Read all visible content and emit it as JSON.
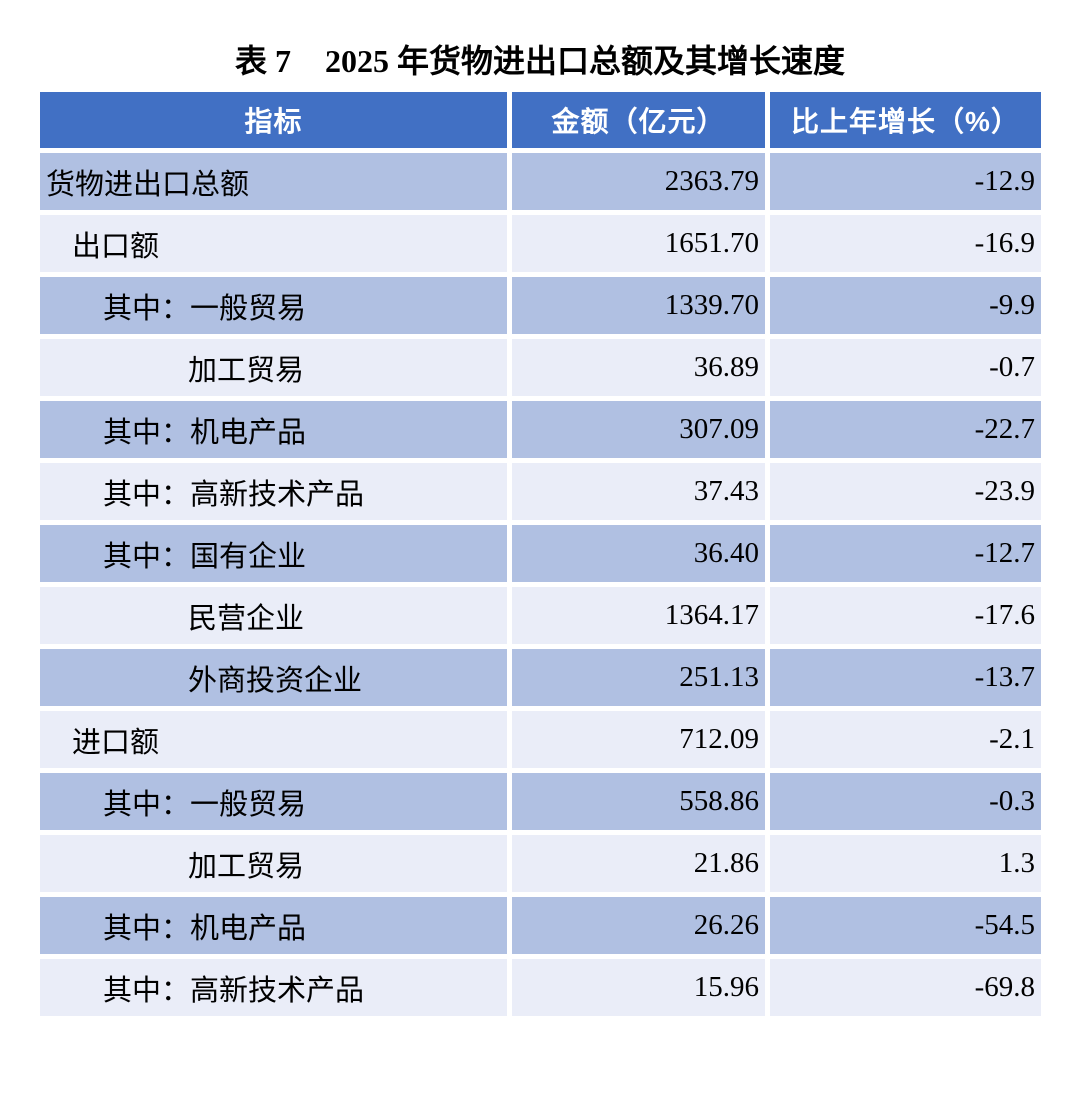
{
  "title": {
    "prefix": "表 7",
    "text": "2025 年货物进出口总额及其增长速度"
  },
  "table": {
    "columns": [
      {
        "key": "indicator",
        "label": "指标"
      },
      {
        "key": "amount",
        "label": "金额（亿元）"
      },
      {
        "key": "growth",
        "label": "比上年增长（%）"
      }
    ],
    "rows": [
      {
        "indicator": "货物进出口总额",
        "amount": "2363.79",
        "growth": "-12.9",
        "indent": 0,
        "shade": "dark"
      },
      {
        "indicator": "出口额",
        "amount": "1651.70",
        "growth": "-16.9",
        "indent": 1,
        "shade": "light"
      },
      {
        "indicator": "其中：一般贸易",
        "amount": "1339.70",
        "growth": "-9.9",
        "indent": 2,
        "shade": "dark"
      },
      {
        "indicator": "加工贸易",
        "amount": "36.89",
        "growth": "-0.7",
        "indent": 3,
        "shade": "light"
      },
      {
        "indicator": "其中：机电产品",
        "amount": "307.09",
        "growth": "-22.7",
        "indent": 2,
        "shade": "dark"
      },
      {
        "indicator": "其中：高新技术产品",
        "amount": "37.43",
        "growth": "-23.9",
        "indent": 2,
        "shade": "light"
      },
      {
        "indicator": "其中：国有企业",
        "amount": "36.40",
        "growth": "-12.7",
        "indent": 2,
        "shade": "dark"
      },
      {
        "indicator": "民营企业",
        "amount": "1364.17",
        "growth": "-17.6",
        "indent": 3,
        "shade": "light"
      },
      {
        "indicator": "外商投资企业",
        "amount": "251.13",
        "growth": "-13.7",
        "indent": 3,
        "shade": "dark"
      },
      {
        "indicator": "进口额",
        "amount": "712.09",
        "growth": "-2.1",
        "indent": 1,
        "shade": "light"
      },
      {
        "indicator": "其中：一般贸易",
        "amount": "558.86",
        "growth": "-0.3",
        "indent": 2,
        "shade": "dark"
      },
      {
        "indicator": "加工贸易",
        "amount": "21.86",
        "growth": "1.3",
        "indent": 3,
        "shade": "light"
      },
      {
        "indicator": "其中：机电产品",
        "amount": "26.26",
        "growth": "-54.5",
        "indent": 2,
        "shade": "dark"
      },
      {
        "indicator": "其中：高新技术产品",
        "amount": "15.96",
        "growth": "-69.8",
        "indent": 2,
        "shade": "light"
      }
    ]
  },
  "colors": {
    "header_bg": "#4170c4",
    "header_text": "#ffffff",
    "row_dark_bg": "#b0c0e2",
    "row_light_bg": "#eaedf8",
    "body_text": "#000000",
    "page_bg": "#ffffff"
  },
  "chart_data": {
    "type": "table",
    "title": "表 7　2025 年货物进出口总额及其增长速度",
    "columns": [
      "指标",
      "金额（亿元）",
      "比上年增长（%）"
    ],
    "rows": [
      [
        "货物进出口总额",
        2363.79,
        -12.9
      ],
      [
        "出口额",
        1651.7,
        -16.9
      ],
      [
        "其中：一般贸易",
        1339.7,
        -9.9
      ],
      [
        "加工贸易",
        36.89,
        -0.7
      ],
      [
        "其中：机电产品",
        307.09,
        -22.7
      ],
      [
        "其中：高新技术产品",
        37.43,
        -23.9
      ],
      [
        "其中：国有企业",
        36.4,
        -12.7
      ],
      [
        "民营企业",
        1364.17,
        -17.6
      ],
      [
        "外商投资企业",
        251.13,
        -13.7
      ],
      [
        "进口额",
        712.09,
        -2.1
      ],
      [
        "其中：一般贸易",
        558.86,
        -0.3
      ],
      [
        "加工贸易",
        21.86,
        1.3
      ],
      [
        "其中：机电产品",
        26.26,
        -54.5
      ],
      [
        "其中：高新技术产品",
        15.96,
        -69.8
      ]
    ]
  }
}
